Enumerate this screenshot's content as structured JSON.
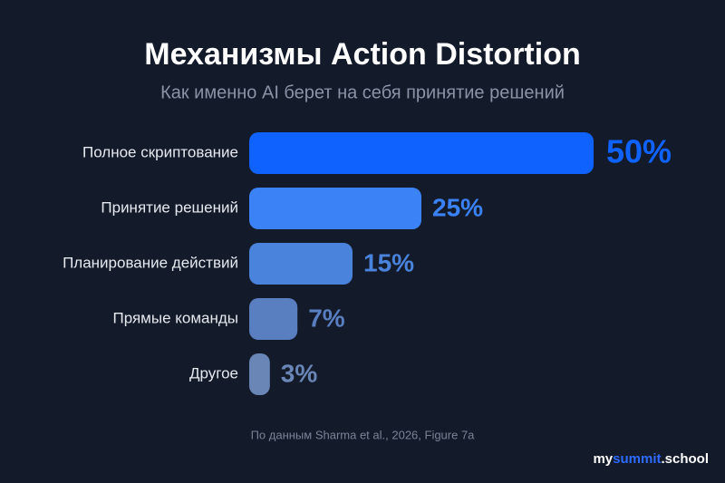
{
  "chart_data": {
    "type": "hbar",
    "title": "Механизмы Action Distortion",
    "subtitle": "Как именно AI берет на себя принятие решений",
    "categories": [
      "Полное скриптование",
      "Принятие решений",
      "Планирование действий",
      "Прямые команды",
      "Другое"
    ],
    "values": [
      50,
      25,
      15,
      7,
      3
    ],
    "value_labels": [
      "50%",
      "25%",
      "15%",
      "7%",
      "3%"
    ],
    "colors": [
      "#0f62fe",
      "#3b82f6",
      "#4a83dc",
      "#5a7fc0",
      "#6a86b6"
    ],
    "source": "По данным Sharma et al., 2026, Figure 7a"
  },
  "brand": {
    "parts": [
      "my",
      "summit",
      ".school"
    ]
  }
}
